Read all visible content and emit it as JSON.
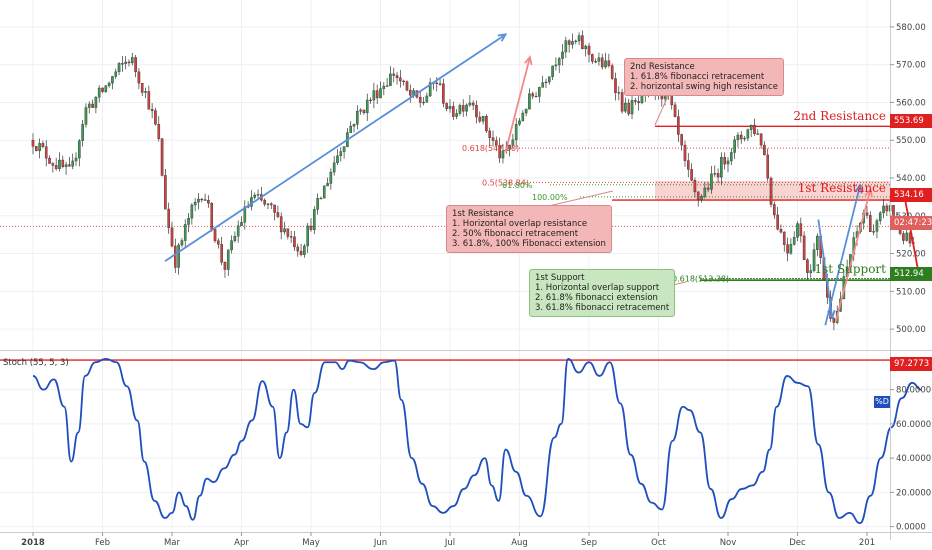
{
  "chart_data": [
    {
      "type": "candlestick",
      "x_ticks": [
        "2018",
        "Feb",
        "Mar",
        "Apr",
        "May",
        "Jun",
        "Jul",
        "Aug",
        "Sep",
        "Oct",
        "Nov",
        "Dec",
        "201"
      ],
      "y_ticks": [
        500.0,
        510.0,
        520.0,
        530.0,
        540.0,
        550.0,
        560.0,
        570.0,
        580.0
      ],
      "ylim": [
        495,
        585
      ],
      "close_path": [
        [
          0.0,
          550
        ],
        [
          0.3,
          544
        ],
        [
          0.55,
          541
        ],
        [
          0.75,
          558
        ],
        [
          1.0,
          563
        ],
        [
          1.2,
          568
        ],
        [
          1.4,
          572
        ],
        [
          1.65,
          561
        ],
        [
          1.8,
          551
        ],
        [
          1.92,
          530
        ],
        [
          2.05,
          518
        ],
        [
          2.25,
          530
        ],
        [
          2.45,
          537
        ],
        [
          2.6,
          526
        ],
        [
          2.75,
          516
        ],
        [
          2.95,
          527
        ],
        [
          3.15,
          535
        ],
        [
          3.4,
          532
        ],
        [
          3.6,
          527
        ],
        [
          3.85,
          521
        ],
        [
          4.1,
          533
        ],
        [
          4.35,
          545
        ],
        [
          4.6,
          555
        ],
        [
          4.9,
          562
        ],
        [
          5.2,
          568
        ],
        [
          5.4,
          562
        ],
        [
          5.6,
          560
        ],
        [
          5.8,
          566
        ],
        [
          6.0,
          557
        ],
        [
          6.3,
          561
        ],
        [
          6.55,
          552
        ],
        [
          6.75,
          545
        ],
        [
          6.9,
          550
        ],
        [
          7.05,
          558
        ],
        [
          7.35,
          566
        ],
        [
          7.6,
          574
        ],
        [
          7.85,
          576
        ],
        [
          8.1,
          571
        ],
        [
          8.3,
          569
        ],
        [
          8.5,
          558
        ],
        [
          8.75,
          560
        ],
        [
          8.95,
          564
        ],
        [
          9.15,
          561
        ],
        [
          9.4,
          542
        ],
        [
          9.55,
          534
        ],
        [
          9.75,
          539
        ],
        [
          10.05,
          548
        ],
        [
          10.35,
          554
        ],
        [
          10.5,
          549
        ],
        [
          10.65,
          531
        ],
        [
          10.85,
          521
        ],
        [
          11.0,
          528
        ],
        [
          11.15,
          515
        ],
        [
          11.3,
          524
        ],
        [
          11.45,
          505
        ],
        [
          11.55,
          503
        ],
        [
          11.75,
          519
        ],
        [
          11.95,
          531
        ],
        [
          12.1,
          526
        ],
        [
          12.3,
          533
        ],
        [
          12.5,
          525
        ],
        [
          12.7,
          521
        ]
      ],
      "arrows": [
        {
          "color": "#5b8fd6",
          "from": [
            1.9,
            518
          ],
          "to": [
            6.8,
            578
          ]
        },
        {
          "color": "#f08a8a",
          "from": [
            6.8,
            547
          ],
          "to": [
            7.15,
            572
          ]
        },
        {
          "color": "#5b8fd6",
          "from": [
            11.3,
            529
          ],
          "to": [
            11.5,
            503
          ]
        },
        {
          "color": "#5b8fd6",
          "from": [
            11.4,
            501
          ],
          "to": [
            11.9,
            538
          ]
        },
        {
          "color": "#f08a8a",
          "from": [
            11.55,
            502
          ],
          "to": [
            12.05,
            537
          ]
        },
        {
          "color": "#e02020",
          "from": [
            12.55,
            534.16
          ],
          "to": [
            12.75,
            514
          ]
        }
      ],
      "levels": [
        {
          "label": "2nd Resistance",
          "tag": "553.69",
          "value": 553.69,
          "color": "#e02020"
        },
        {
          "label": "1st Resistance",
          "tag": "534.16",
          "value": 534.16,
          "color": "#e02020",
          "zone": [
            534.16,
            539.2
          ]
        },
        {
          "label": "1st Support",
          "tag": "512.94",
          "value": 512.94,
          "color": "#2e7d1e"
        }
      ],
      "current_price": {
        "tag": "02:47:23",
        "value": 527.2
      },
      "fib_levels": [
        {
          "label": "0.618(547.90)",
          "value": 547.9
        },
        {
          "label": "0.5(538.84)",
          "value": 538.84
        },
        {
          "label": "61.80%",
          "value": 538.2
        },
        {
          "label": "100.00%",
          "value": 535.0
        },
        {
          "label": "0.618(513.38)",
          "value": 513.38
        }
      ]
    },
    {
      "type": "line",
      "name": "Stoch (55, 5, 3)",
      "legend_tag": "%D",
      "y_ticks": [
        0.0,
        20.0,
        40.0,
        60.0,
        80.0
      ],
      "ylim": [
        -2,
        102
      ],
      "reference_line": {
        "tag": "97.2773",
        "value": 97.2773
      },
      "x": [
        0.0,
        0.15,
        0.3,
        0.45,
        0.55,
        0.65,
        0.75,
        0.9,
        1.05,
        1.2,
        1.35,
        1.5,
        1.6,
        1.75,
        1.9,
        2.0,
        2.1,
        2.2,
        2.3,
        2.4,
        2.5,
        2.6,
        2.75,
        2.9,
        3.0,
        3.15,
        3.3,
        3.45,
        3.55,
        3.65,
        3.75,
        3.85,
        3.95,
        4.05,
        4.2,
        4.35,
        4.45,
        4.55,
        4.7,
        4.9,
        5.05,
        5.2,
        5.3,
        5.45,
        5.6,
        5.75,
        5.9,
        6.05,
        6.2,
        6.35,
        6.5,
        6.6,
        6.7,
        6.8,
        6.95,
        7.1,
        7.3,
        7.5,
        7.6,
        7.7,
        7.85,
        8.0,
        8.15,
        8.3,
        8.45,
        8.6,
        8.75,
        8.9,
        9.05,
        9.2,
        9.35,
        9.45,
        9.6,
        9.75,
        9.9,
        10.05,
        10.2,
        10.35,
        10.5,
        10.6,
        10.7,
        10.85,
        11.0,
        11.15,
        11.3,
        11.45,
        11.6,
        11.75,
        11.9,
        12.05,
        12.2,
        12.35,
        12.5,
        12.65,
        12.78
      ],
      "values": [
        88,
        80,
        86,
        70,
        38,
        55,
        88,
        96,
        98,
        96,
        82,
        62,
        38,
        15,
        5,
        8,
        20,
        12,
        4,
        18,
        28,
        26,
        34,
        42,
        50,
        62,
        85,
        70,
        40,
        55,
        80,
        60,
        58,
        78,
        96,
        96,
        92,
        97,
        96,
        92,
        96,
        97,
        74,
        40,
        25,
        12,
        8,
        12,
        22,
        30,
        40,
        24,
        15,
        45,
        32,
        18,
        6,
        52,
        60,
        98,
        90,
        96,
        88,
        96,
        72,
        42,
        25,
        14,
        10,
        50,
        70,
        68,
        55,
        22,
        5,
        16,
        22,
        24,
        32,
        45,
        70,
        88,
        84,
        82,
        48,
        20,
        5,
        8,
        2,
        18,
        40,
        58,
        75,
        84,
        80
      ]
    }
  ]
}
